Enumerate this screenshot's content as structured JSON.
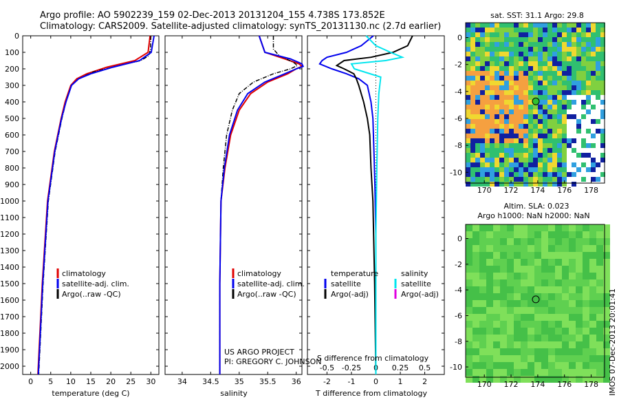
{
  "header": {
    "line1": "Argo profile: AO 5902239_159 02-Dec-2013 20131204_155 4.738S 173.852E",
    "line2": "Climatology: CARS2009. Satellite-adjusted climatology: synTS_20131130.nc (2.7d earlier)"
  },
  "colors": {
    "climatology": "#e00000",
    "satellite": "#0000ee",
    "argo": "#000000",
    "salinity_satellite": "#00e5ee",
    "salinity_argo": "#e000e0"
  },
  "footer": {
    "project": "US ARGO PROJECT",
    "pi": "PI: GREGORY C. JOHNSON",
    "stamp": "IMOS 07-Dec-2013 20:01:41"
  },
  "chart_data": [
    {
      "id": "temperature",
      "type": "line",
      "xlabel": "temperature (deg C)",
      "ylabel": "",
      "xlim": [
        -2,
        32
      ],
      "ylim": [
        2050,
        0
      ],
      "xticks": [
        0,
        5,
        10,
        15,
        20,
        25,
        30
      ],
      "yticks": [
        0,
        100,
        200,
        300,
        400,
        500,
        600,
        700,
        800,
        900,
        1000,
        1100,
        1200,
        1300,
        1400,
        1500,
        1600,
        1700,
        1800,
        1900,
        2000
      ],
      "legend": [
        "climatology",
        "satellite-adj. clim.",
        "Argo(..raw -QC)"
      ],
      "series": [
        {
          "name": "climatology",
          "pressure": [
            0,
            100,
            150,
            190,
            230,
            260,
            300,
            400,
            500,
            700,
            1000,
            1500,
            2050
          ],
          "values": [
            29.8,
            29.3,
            26,
            19,
            14,
            11.5,
            10,
            8.6,
            7.6,
            5.9,
            4.2,
            2.9,
            1.8
          ]
        },
        {
          "name": "satellite-adj. clim.",
          "pressure": [
            0,
            100,
            150,
            190,
            230,
            260,
            300,
            400,
            500,
            700,
            1000,
            1500,
            2050
          ],
          "values": [
            30.8,
            30.1,
            27.2,
            20.5,
            15,
            12,
            10.2,
            8.8,
            7.7,
            6,
            4.3,
            3,
            1.9
          ]
        },
        {
          "name": "Argo(..raw -QC)",
          "pressure": [
            0,
            80,
            120,
            150,
            180,
            220,
            260,
            300,
            380,
            500,
            700,
            1000,
            1500,
            2050
          ],
          "values": [
            30,
            29.9,
            29.5,
            27.5,
            22,
            15.5,
            12,
            10.2,
            9,
            7.8,
            6.1,
            4.4,
            3.1,
            2
          ]
        }
      ]
    },
    {
      "id": "salinity",
      "type": "line",
      "xlabel": "salinity",
      "ylabel": "",
      "xlim": [
        33.7,
        36.1
      ],
      "ylim": [
        2050,
        0
      ],
      "xticks": [
        34,
        34.5,
        35,
        35.5,
        36
      ],
      "legend": [
        "climatology",
        "satellite-adj. clim.",
        "Argo(..raw -QC)"
      ],
      "series": [
        {
          "name": "climatology",
          "pressure": [
            0,
            100,
            140,
            170,
            185,
            200,
            230,
            280,
            350,
            450,
            600,
            800,
            1000,
            1500,
            2050
          ],
          "values": [
            35.35,
            35.45,
            35.8,
            36.05,
            36.1,
            36.0,
            35.85,
            35.5,
            35.2,
            35.0,
            34.85,
            34.75,
            34.68,
            34.66,
            34.66
          ]
        },
        {
          "name": "satellite-adj. clim.",
          "pressure": [
            0,
            100,
            140,
            170,
            185,
            200,
            230,
            280,
            350,
            450,
            600,
            800,
            1000,
            1500,
            2050
          ],
          "values": [
            35.35,
            35.45,
            35.9,
            36.1,
            36.12,
            36.0,
            35.8,
            35.45,
            35.15,
            34.97,
            34.83,
            34.74,
            34.68,
            34.66,
            34.66
          ]
        },
        {
          "name": "Argo(..raw -QC)",
          "pressure": [
            0,
            80,
            120,
            160,
            180,
            200,
            230,
            280,
            350,
            450,
            600,
            800,
            1000,
            1500,
            2050
          ],
          "values": [
            35.6,
            35.6,
            35.7,
            35.95,
            36.02,
            35.9,
            35.6,
            35.25,
            35.0,
            34.88,
            34.78,
            34.72,
            34.68,
            34.66,
            34.66
          ]
        }
      ]
    },
    {
      "id": "difference",
      "type": "line",
      "xlabel": "T difference from climatology",
      "xlabel2": "S difference from climatology",
      "xlim": [
        -2.8,
        2.8
      ],
      "ylim": [
        2050,
        0
      ],
      "xticks": [
        -2,
        -1,
        0,
        1,
        2
      ],
      "xticklabels2": [
        "-0.5",
        "-0.25",
        "0",
        "0.25",
        "0.5"
      ],
      "xticks2": [
        -0.5,
        -0.25,
        0,
        0.25,
        0.5
      ],
      "legend_temperature": [
        "temperature",
        "satellite",
        "Argo(-adj)"
      ],
      "legend_salinity": [
        "salinity",
        "satellite",
        "Argo(-adj)"
      ],
      "series": [
        {
          "name": "T satellite",
          "pressure": [
            0,
            60,
            100,
            130,
            150,
            170,
            200,
            230,
            260,
            300,
            400,
            500,
            700,
            900,
            1200,
            2050
          ],
          "values": [
            -0.1,
            -0.6,
            -1.2,
            -2.0,
            -2.2,
            -2.3,
            -1.8,
            -1.2,
            -0.7,
            -0.35,
            -0.2,
            -0.12,
            -0.08,
            -0.04,
            0,
            0
          ]
        },
        {
          "name": "T Argo(-adj)",
          "pressure": [
            0,
            60,
            100,
            130,
            150,
            180,
            200,
            230,
            260,
            300,
            400,
            500,
            600,
            800,
            1000,
            1500,
            2050
          ],
          "values": [
            1.5,
            1.3,
            0.7,
            -0.2,
            -1.3,
            -1.6,
            -1.3,
            -0.9,
            -0.8,
            -0.7,
            -0.5,
            -0.35,
            -0.25,
            -0.2,
            -0.12,
            -0.05,
            0
          ]
        },
        {
          "name": "S satellite",
          "pressure": [
            0,
            60,
            100,
            130,
            150,
            170,
            200,
            250,
            350,
            500,
            800,
            1200,
            2050
          ],
          "values": [
            -0.1,
            0,
            0.15,
            0.27,
            0.1,
            -0.25,
            -0.22,
            0.05,
            0.03,
            0.02,
            0.01,
            0,
            0
          ]
        },
        {
          "name": "S Argo(-adj)",
          "pressure": [
            0,
            2050
          ],
          "values": [
            0,
            0
          ]
        }
      ]
    },
    {
      "id": "sst_map",
      "type": "heatmap",
      "title": "sat. SST: 31.1  Argo: 29.8",
      "xticks": [
        170,
        172,
        174,
        176,
        178
      ],
      "yticks": [
        0,
        -2,
        -4,
        -6,
        -8,
        -10
      ],
      "xlim": [
        168.6,
        179
      ],
      "ylim": [
        -10.8,
        1.1
      ],
      "float_position": [
        173.852,
        -4.738
      ]
    },
    {
      "id": "sla_map",
      "type": "heatmap",
      "title": "Altim. SLA: 0.023",
      "subtitle": "Argo h1000: NaN h2000: NaN",
      "xticks": [
        170,
        172,
        174,
        176,
        178
      ],
      "yticks": [
        0,
        -2,
        -4,
        -6,
        -8,
        -10
      ],
      "xlim": [
        168.6,
        179
      ],
      "ylim": [
        -10.8,
        1.1
      ],
      "float_position": [
        173.852,
        -4.738
      ]
    }
  ]
}
